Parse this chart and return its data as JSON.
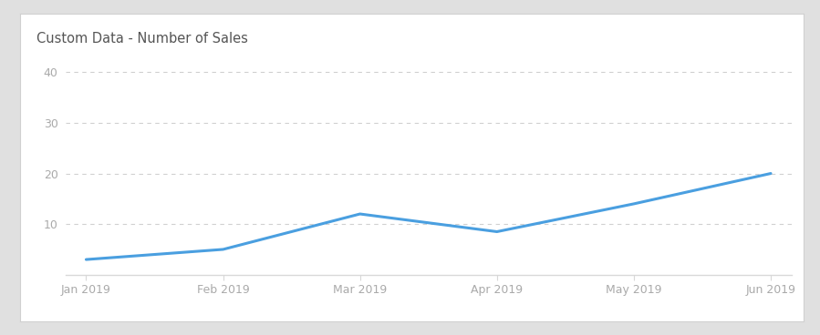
{
  "title": "Custom Data - Number of Sales",
  "x_labels": [
    "Jan 2019",
    "Feb 2019",
    "Mar 2019",
    "Apr 2019",
    "May 2019",
    "Jun 2019"
  ],
  "x_values": [
    0,
    1,
    2,
    3,
    4,
    5
  ],
  "y_values": [
    3,
    5,
    12,
    8.5,
    14,
    20
  ],
  "line_color": "#4A9FE0",
  "line_width": 2.2,
  "ylim": [
    0,
    45
  ],
  "yticks": [
    10,
    20,
    30,
    40
  ],
  "background_color": "#ffffff",
  "outer_bg_color": "#e0e0e0",
  "card_border_color": "#d0d0d0",
  "title_fontsize": 10.5,
  "title_color": "#555555",
  "tick_label_color": "#aaaaaa",
  "grid_color": "#d0d0d0",
  "grid_style": "--",
  "grid_alpha": 1.0,
  "axis_line_color": "#d8d8d8"
}
